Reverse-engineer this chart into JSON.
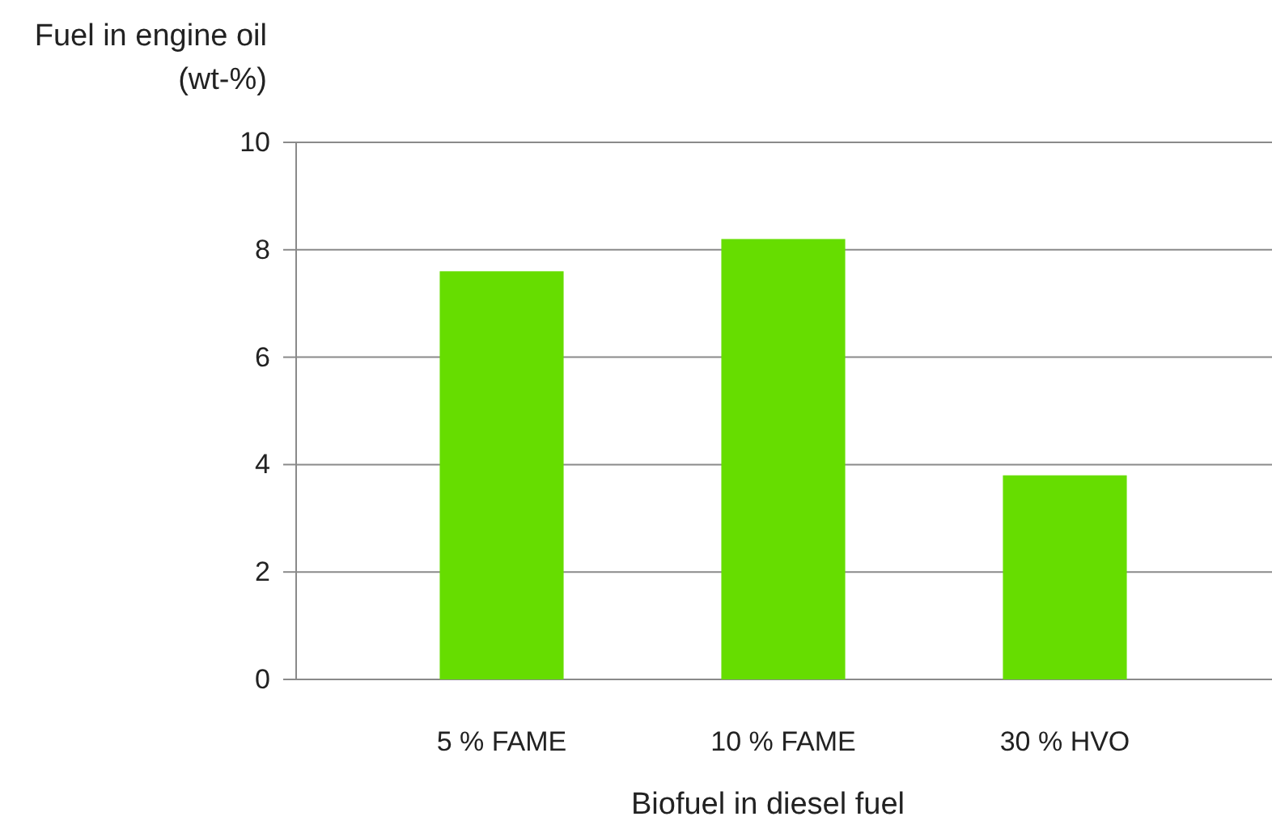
{
  "chart_data": {
    "type": "bar",
    "xlabel": "Biofuel in diesel fuel",
    "ylabel": "Fuel in engine oil (wt-%)",
    "categories": [
      "5 % FAME",
      "10 % FAME",
      "30 % HVO"
    ],
    "values": [
      7.6,
      8.2,
      3.8
    ],
    "color": "#66dd00",
    "ylim": [
      0,
      10
    ],
    "yticks": [
      0,
      2,
      4,
      6,
      8,
      10
    ],
    "grid": "y"
  }
}
